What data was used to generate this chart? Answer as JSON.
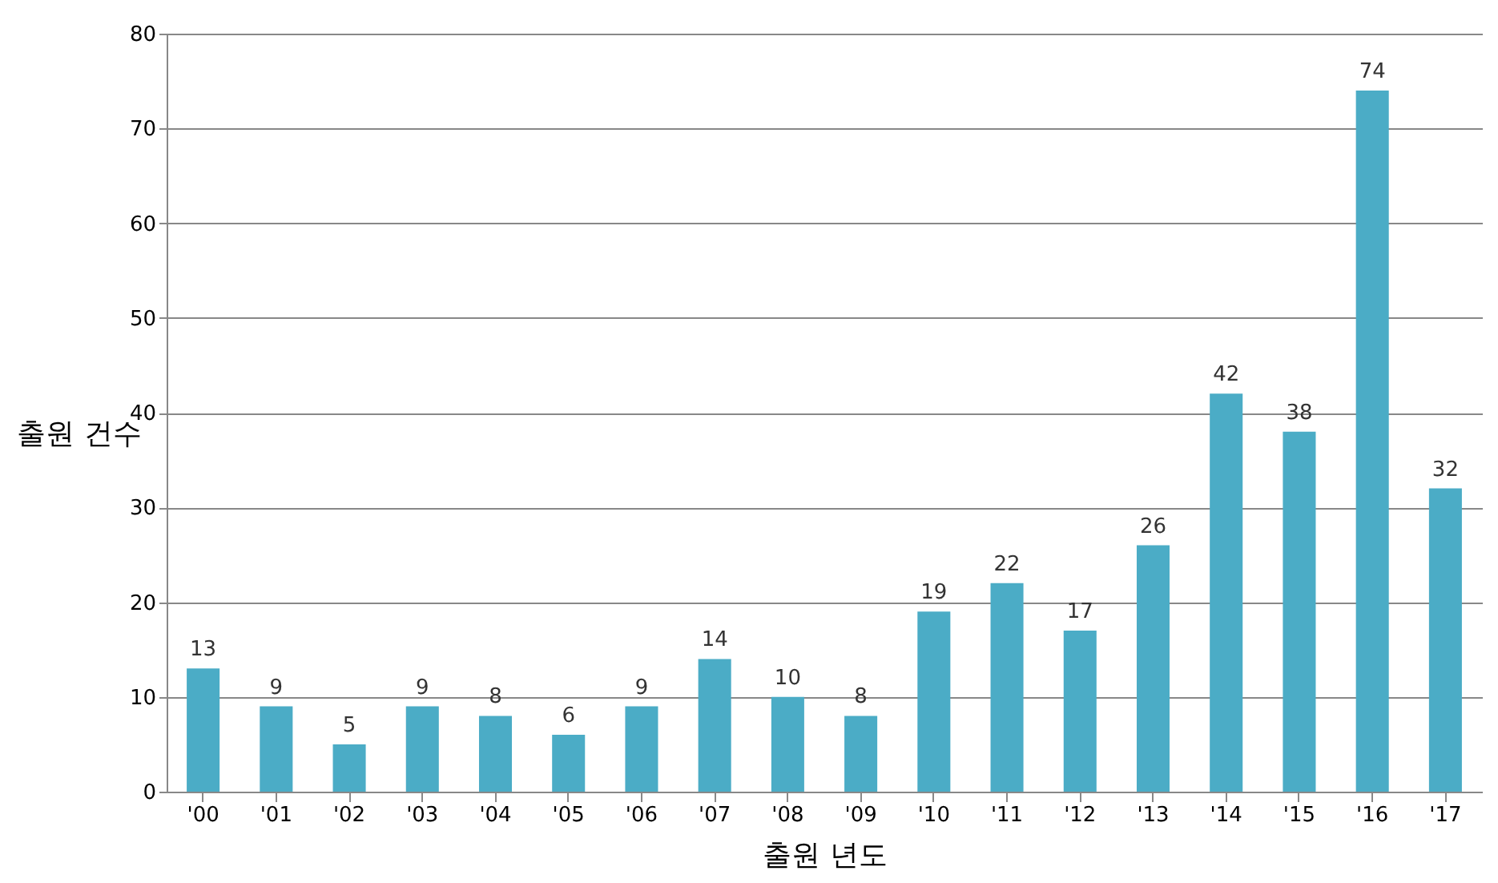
{
  "chart_data": {
    "type": "bar",
    "xlabel": "출원 년도",
    "ylabel": "출원 건수",
    "categories": [
      "'00",
      "'01",
      "'02",
      "'03",
      "'04",
      "'05",
      "'06",
      "'07",
      "'08",
      "'09",
      "'10",
      "'11",
      "'12",
      "'13",
      "'14",
      "'15",
      "'16",
      "'17"
    ],
    "values": [
      13,
      9,
      5,
      9,
      8,
      6,
      9,
      14,
      10,
      8,
      19,
      22,
      17,
      26,
      42,
      38,
      74,
      32
    ],
    "color": "#4bacc6",
    "ylim": [
      0,
      80
    ],
    "yticks": [
      0,
      10,
      20,
      30,
      40,
      50,
      60,
      70,
      80
    ],
    "grid": "y",
    "data_labels": true
  }
}
